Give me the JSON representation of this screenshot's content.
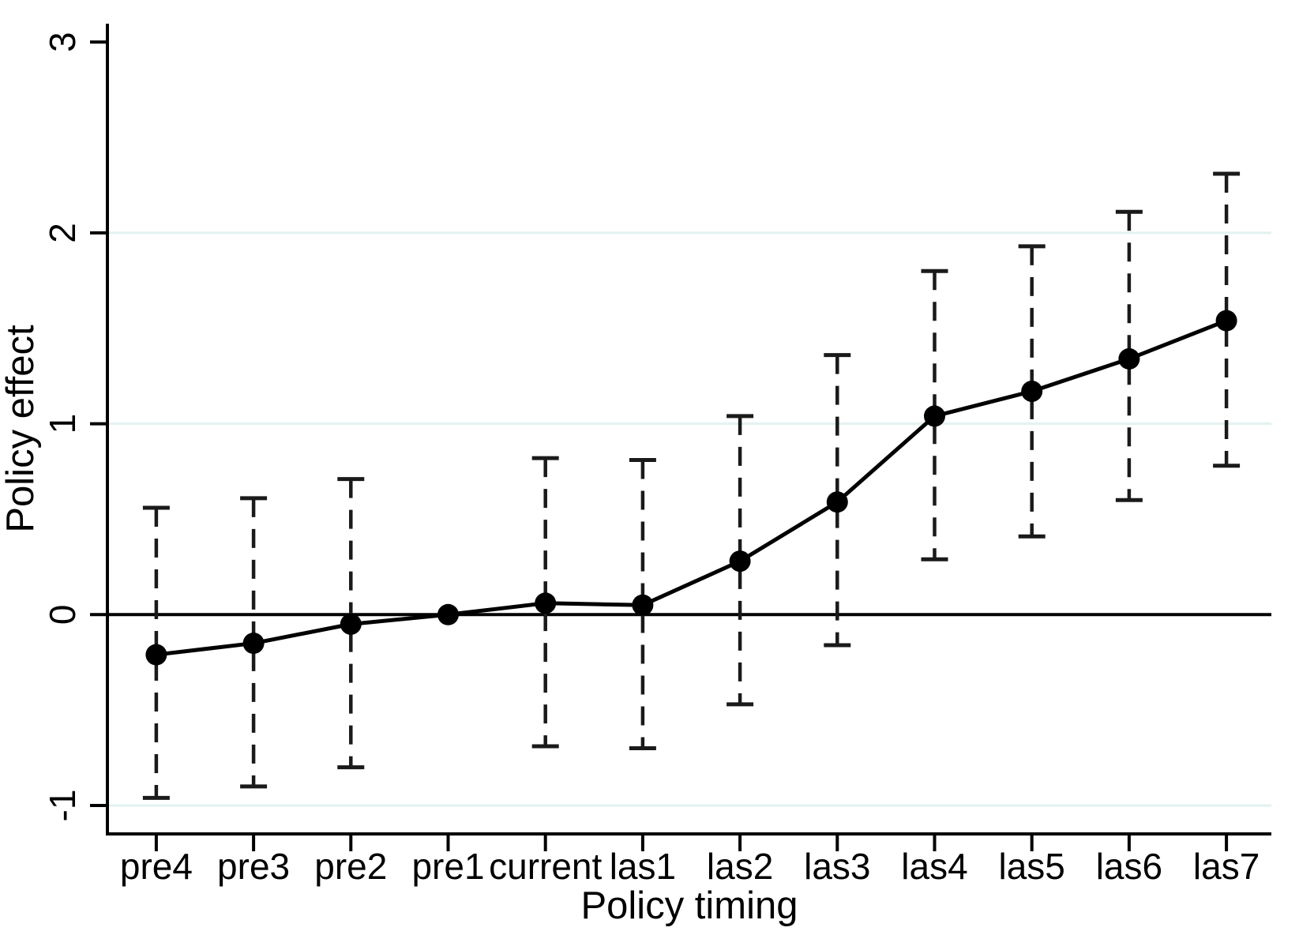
{
  "figure": {
    "background_color": "#ffffff"
  },
  "chart_data": {
    "type": "line",
    "subtype": "event-study-with-confidence-intervals",
    "title": "",
    "xlabel": "Policy timing",
    "ylabel": "Policy effect",
    "categories": [
      "pre4",
      "pre3",
      "pre2",
      "pre1",
      "current",
      "las1",
      "las2",
      "las3",
      "las4",
      "las5",
      "las6",
      "las7"
    ],
    "series": [
      {
        "name": "Policy effect",
        "values": [
          -0.21,
          -0.15,
          -0.05,
          0.0,
          0.06,
          0.05,
          0.28,
          0.59,
          1.04,
          1.17,
          1.34,
          1.54
        ],
        "ci_low": [
          -0.96,
          -0.9,
          -0.8,
          null,
          -0.69,
          -0.7,
          -0.47,
          -0.16,
          0.29,
          0.41,
          0.6,
          0.78
        ],
        "ci_high": [
          0.56,
          0.61,
          0.71,
          null,
          0.82,
          0.81,
          1.04,
          1.36,
          1.8,
          1.93,
          2.11,
          2.31
        ]
      }
    ],
    "yticks": [
      -1,
      0,
      1,
      2,
      3
    ],
    "ytick_labels": [
      "-1",
      "0",
      "1",
      "2",
      "3"
    ],
    "ylim": [
      -1.149,
      3.096
    ],
    "gridlines_at": [
      -1,
      1,
      2
    ],
    "zero_reference_line": 0,
    "grid": "horizontal-faint",
    "legend_position": "none",
    "marker": "filled-circle",
    "ci_style": "dashed-whiskers-with-caps",
    "colors": {
      "point": "#000000",
      "line": "#000000",
      "whisker": "#1a1a1a",
      "axis": "#000000",
      "zero_line": "#000000",
      "gridline": "#e2f1f1"
    }
  }
}
